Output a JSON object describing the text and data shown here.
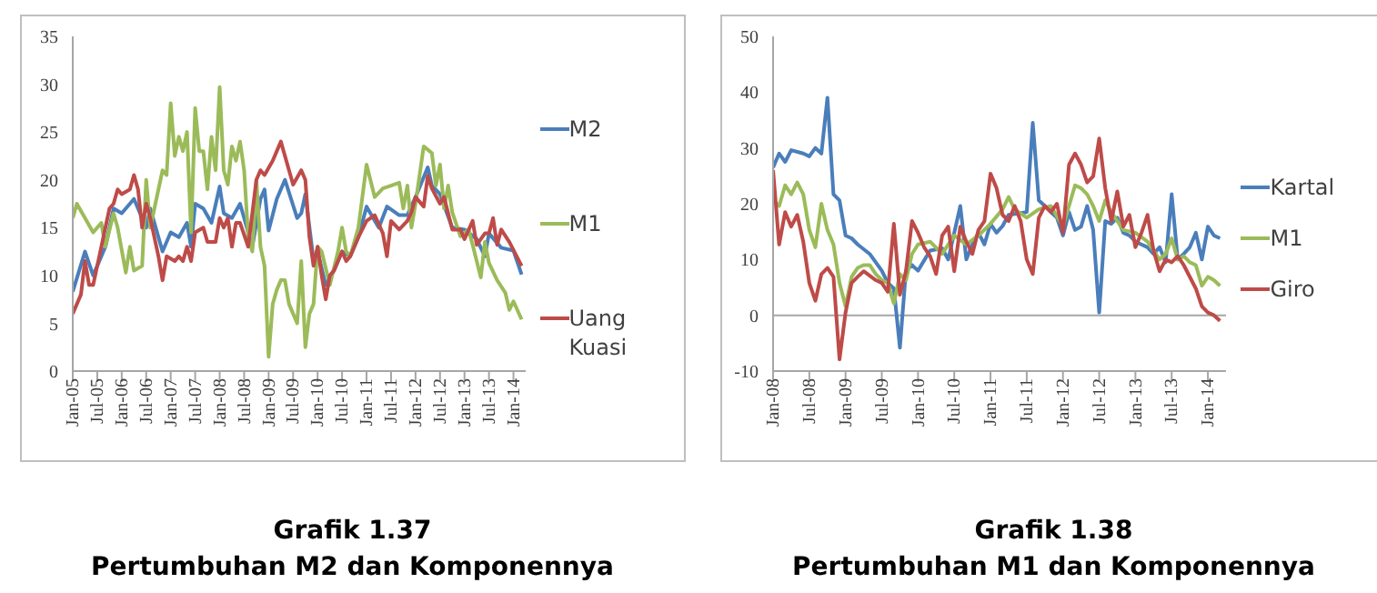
{
  "chart_data": [
    {
      "type": "line",
      "title": "Grafik 1.37",
      "subtitle": "Pertumbuhan M2 dan Komponennya",
      "legend": "right",
      "xlim": [
        "2005-01",
        "2014-04"
      ],
      "ylim": [
        0,
        35
      ],
      "yticks": [
        0,
        5,
        10,
        15,
        20,
        25,
        30,
        35
      ],
      "xticks": [
        {
          "value": "2005-01",
          "label": "Jan-05"
        },
        {
          "value": "2005-07",
          "label": "Jul-05"
        },
        {
          "value": "2006-01",
          "label": "Jan-06"
        },
        {
          "value": "2006-07",
          "label": "Jul-06"
        },
        {
          "value": "2007-01",
          "label": "Jan-07"
        },
        {
          "value": "2007-07",
          "label": "Jul-07"
        },
        {
          "value": "2008-01",
          "label": "Jan-08"
        },
        {
          "value": "2008-07",
          "label": "Jul-08"
        },
        {
          "value": "2009-01",
          "label": "Jan-09"
        },
        {
          "value": "2009-07",
          "label": "Jul-09"
        },
        {
          "value": "2010-01",
          "label": "Jan-10"
        },
        {
          "value": "2010-07",
          "label": "Jul-10"
        },
        {
          "value": "2011-01",
          "label": "Jan-11"
        },
        {
          "value": "2011-07",
          "label": "Jul-11"
        },
        {
          "value": "2012-01",
          "label": "Jan-12"
        },
        {
          "value": "2012-07",
          "label": "Jul-12"
        },
        {
          "value": "2013-01",
          "label": "Jan-13"
        },
        {
          "value": "2013-07",
          "label": "Jul-13"
        },
        {
          "value": "2014-01",
          "label": "Jan-14"
        }
      ],
      "series": [
        {
          "name": "M2",
          "color": "#4a7ebb",
          "x": [
            "2005-01",
            "2005-04",
            "2005-06",
            "2005-09",
            "2005-11",
            "2006-01",
            "2006-04",
            "2006-07",
            "2006-08",
            "2006-11",
            "2007-01",
            "2007-03",
            "2007-05",
            "2007-06",
            "2007-07",
            "2007-09",
            "2007-11",
            "2008-01",
            "2008-02",
            "2008-04",
            "2008-06",
            "2008-09",
            "2008-11",
            "2008-12",
            "2009-01",
            "2009-03",
            "2009-05",
            "2009-08",
            "2009-09",
            "2009-10",
            "2009-12",
            "2010-01",
            "2010-03",
            "2010-05",
            "2010-07",
            "2010-09",
            "2010-11",
            "2011-01",
            "2011-04",
            "2011-06",
            "2011-09",
            "2011-11",
            "2012-01",
            "2012-04",
            "2012-05",
            "2012-07",
            "2012-10",
            "2013-01",
            "2013-04",
            "2013-06",
            "2013-07",
            "2013-10",
            "2014-01",
            "2014-03"
          ],
          "values": [
            8.3,
            12.5,
            10,
            13,
            17,
            16.5,
            18,
            15,
            17,
            12.5,
            14.5,
            14,
            15.5,
            13,
            17.5,
            17,
            15.5,
            19.3,
            16.5,
            16,
            17.5,
            13,
            18,
            19,
            14.7,
            18,
            20,
            16,
            16.5,
            18.5,
            11.6,
            12.5,
            9,
            10.5,
            12.5,
            12,
            14,
            17.2,
            15,
            17.2,
            16.3,
            16.3,
            18.2,
            21.3,
            19.4,
            18.5,
            15,
            14.8,
            13.8,
            12,
            14.4,
            12.9,
            12.6,
            10.1
          ]
        },
        {
          "name": "M1",
          "color": "#9bbb59",
          "x": [
            "2005-01",
            "2005-02",
            "2005-06",
            "2005-08",
            "2005-09",
            "2005-11",
            "2005-12",
            "2006-02",
            "2006-03",
            "2006-04",
            "2006-06",
            "2006-07",
            "2006-08",
            "2006-10",
            "2006-11",
            "2006-12",
            "2007-01",
            "2007-02",
            "2007-03",
            "2007-04",
            "2007-05",
            "2007-06",
            "2007-07",
            "2007-08",
            "2007-09",
            "2007-10",
            "2007-11",
            "2007-12",
            "2008-01",
            "2008-02",
            "2008-03",
            "2008-04",
            "2008-05",
            "2008-06",
            "2008-07",
            "2008-08",
            "2008-09",
            "2008-10",
            "2008-11",
            "2008-12",
            "2009-01",
            "2009-02",
            "2009-03",
            "2009-04",
            "2009-05",
            "2009-06",
            "2009-08",
            "2009-09",
            "2009-10",
            "2009-11",
            "2009-12",
            "2010-01",
            "2010-02",
            "2010-04",
            "2010-06",
            "2010-07",
            "2010-08",
            "2010-09",
            "2010-11",
            "2011-01",
            "2011-03",
            "2011-05",
            "2011-07",
            "2011-09",
            "2011-10",
            "2011-11",
            "2011-12",
            "2012-01",
            "2012-03",
            "2012-05",
            "2012-06",
            "2012-07",
            "2012-08",
            "2012-09",
            "2012-10",
            "2012-12",
            "2013-02",
            "2013-03",
            "2013-05",
            "2013-06",
            "2013-07",
            "2013-09",
            "2013-11",
            "2013-12",
            "2014-01",
            "2014-03"
          ],
          "values": [
            16,
            17.5,
            14.5,
            15.5,
            13,
            16.5,
            15,
            10.3,
            13,
            10.5,
            11,
            20,
            15,
            19,
            21,
            20.5,
            28,
            22.5,
            24.5,
            23,
            25,
            14.5,
            27.5,
            23,
            23,
            19,
            24.5,
            21,
            29.7,
            21,
            19.5,
            23.5,
            22,
            24,
            21,
            14,
            12.5,
            20,
            13,
            11,
            1.5,
            7,
            8.5,
            9.5,
            9.5,
            7,
            5,
            11.5,
            2.5,
            6,
            7,
            13,
            12.5,
            9,
            12.5,
            15,
            12.5,
            12,
            15,
            21.6,
            18.2,
            19.1,
            19.4,
            19.7,
            17,
            19.4,
            15,
            17.5,
            23.5,
            22.8,
            19.4,
            21.6,
            17,
            19.4,
            16.6,
            14.1,
            14.8,
            13.2,
            9.8,
            13.5,
            11.3,
            9.5,
            8.2,
            6.4,
            7.3,
            5.4
          ]
        },
        {
          "name": "Uang Kuasi",
          "color": "#be4b48",
          "x": [
            "2005-01",
            "2005-03",
            "2005-04",
            "2005-05",
            "2005-06",
            "2005-08",
            "2005-10",
            "2005-11",
            "2005-12",
            "2006-01",
            "2006-03",
            "2006-04",
            "2006-05",
            "2006-06",
            "2006-07",
            "2006-08",
            "2006-10",
            "2006-11",
            "2006-12",
            "2007-02",
            "2007-03",
            "2007-04",
            "2007-05",
            "2007-06",
            "2007-07",
            "2007-09",
            "2007-10",
            "2007-12",
            "2008-01",
            "2008-02",
            "2008-03",
            "2008-04",
            "2008-05",
            "2008-06",
            "2008-08",
            "2008-10",
            "2008-11",
            "2008-12",
            "2009-02",
            "2009-04",
            "2009-06",
            "2009-07",
            "2009-09",
            "2009-10",
            "2009-11",
            "2009-12",
            "2010-01",
            "2010-02",
            "2010-03",
            "2010-04",
            "2010-05",
            "2010-07",
            "2010-08",
            "2010-09",
            "2010-11",
            "2011-01",
            "2011-03",
            "2011-05",
            "2011-06",
            "2011-07",
            "2011-09",
            "2011-11",
            "2011-12",
            "2012-01",
            "2012-03",
            "2012-04",
            "2012-05",
            "2012-07",
            "2012-08",
            "2012-10",
            "2012-12",
            "2013-01",
            "2013-03",
            "2013-04",
            "2013-06",
            "2013-07",
            "2013-08",
            "2013-09",
            "2013-10",
            "2013-12",
            "2014-03"
          ],
          "values": [
            6,
            8,
            11.5,
            9,
            9,
            13,
            17,
            17.5,
            19,
            18.5,
            19,
            20.5,
            19,
            15,
            17.5,
            16,
            12,
            9.5,
            12,
            11.5,
            12,
            11.5,
            13,
            11.5,
            14.5,
            15,
            13.5,
            13.5,
            16,
            15,
            16,
            13,
            15.5,
            15.5,
            13,
            20,
            21,
            20.5,
            22,
            24,
            21,
            19.5,
            21,
            20,
            14,
            11,
            13,
            10,
            7.5,
            10,
            10.5,
            12.5,
            11.5,
            12,
            14,
            15.7,
            16.3,
            14.4,
            12,
            15.7,
            14.8,
            15.7,
            16.6,
            18.2,
            17.2,
            20.4,
            19.1,
            17.5,
            18.2,
            14.8,
            14.8,
            13.8,
            15.7,
            13.2,
            14.4,
            14.4,
            16,
            13.2,
            14.8,
            13.5,
            11
          ]
        }
      ]
    },
    {
      "type": "line",
      "title": "Grafik 1.38",
      "subtitle": "Pertumbuhan M1 dan Komponennya",
      "legend": "right",
      "xlim": [
        "2008-01",
        "2014-04"
      ],
      "ylim": [
        -10,
        50
      ],
      "yticks": [
        -10,
        0,
        10,
        20,
        30,
        40,
        50
      ],
      "ref_lines": [
        {
          "axis": "y",
          "value": 0,
          "color": "#a6a6a6"
        }
      ],
      "xticks": [
        {
          "value": "2008-01",
          "label": "Jan-08"
        },
        {
          "value": "2008-07",
          "label": "Jul-08"
        },
        {
          "value": "2009-01",
          "label": "Jan-09"
        },
        {
          "value": "2009-07",
          "label": "Jul-09"
        },
        {
          "value": "2010-01",
          "label": "Jan-10"
        },
        {
          "value": "2010-07",
          "label": "Jul-10"
        },
        {
          "value": "2011-01",
          "label": "Jan-11"
        },
        {
          "value": "2011-07",
          "label": "Jul-11"
        },
        {
          "value": "2012-01",
          "label": "Jan-12"
        },
        {
          "value": "2012-07",
          "label": "Jul-12"
        },
        {
          "value": "2013-01",
          "label": "Jan-13"
        },
        {
          "value": "2013-07",
          "label": "Jul-13"
        },
        {
          "value": "2014-01",
          "label": "Jan-14"
        }
      ],
      "series": [
        {
          "name": "Kartal",
          "color": "#4a7ebb",
          "x": [
            "2008-01",
            "2008-02",
            "2008-03",
            "2008-04",
            "2008-06",
            "2008-07",
            "2008-08",
            "2008-09",
            "2008-10",
            "2008-11",
            "2008-12",
            "2009-01",
            "2009-02",
            "2009-03",
            "2009-05",
            "2009-07",
            "2009-08",
            "2009-09",
            "2009-10",
            "2009-11",
            "2009-12",
            "2010-01",
            "2010-03",
            "2010-05",
            "2010-06",
            "2010-08",
            "2010-09",
            "2010-10",
            "2010-11",
            "2010-12",
            "2011-01",
            "2011-02",
            "2011-03",
            "2011-04",
            "2011-07",
            "2011-08",
            "2011-09",
            "2011-10",
            "2011-11",
            "2011-12",
            "2012-01",
            "2012-02",
            "2012-03",
            "2012-04",
            "2012-05",
            "2012-06",
            "2012-07",
            "2012-08",
            "2012-09",
            "2012-10",
            "2012-11",
            "2012-12",
            "2013-01",
            "2013-03",
            "2013-04",
            "2013-05",
            "2013-06",
            "2013-07",
            "2013-08",
            "2013-09",
            "2013-10",
            "2013-11",
            "2013-12",
            "2014-01",
            "2014-02",
            "2014-03"
          ],
          "values": [
            26.5,
            29,
            27.5,
            29.6,
            29,
            28.5,
            30,
            29,
            39,
            21.7,
            20.6,
            14.3,
            13.8,
            12.7,
            11,
            8,
            5.8,
            4.8,
            -5.8,
            8,
            9,
            8,
            11.6,
            12,
            10,
            19.6,
            10,
            12.7,
            14.8,
            12.7,
            16.4,
            14.8,
            16,
            18,
            18.5,
            34.5,
            20.6,
            19.6,
            18.5,
            17.5,
            14.3,
            18.5,
            15.3,
            15.9,
            19.6,
            15.3,
            0.5,
            16.9,
            16.4,
            17.5,
            14.8,
            14.3,
            13.2,
            12.2,
            11,
            12.2,
            9.5,
            21.7,
            10,
            11,
            12.2,
            14.8,
            10,
            15.9,
            14.3,
            13.8
          ]
        },
        {
          "name": "M1",
          "color": "#9bbb59",
          "x": [
            "2008-01",
            "2008-02",
            "2008-03",
            "2008-04",
            "2008-05",
            "2008-06",
            "2008-07",
            "2008-08",
            "2008-09",
            "2008-10",
            "2008-11",
            "2008-12",
            "2009-01",
            "2009-02",
            "2009-03",
            "2009-04",
            "2009-05",
            "2009-06",
            "2009-07",
            "2009-08",
            "2009-09",
            "2009-10",
            "2009-11",
            "2009-12",
            "2010-01",
            "2010-03",
            "2010-05",
            "2010-07",
            "2010-09",
            "2010-11",
            "2011-01",
            "2011-03",
            "2011-04",
            "2011-05",
            "2011-07",
            "2011-09",
            "2011-11",
            "2012-01",
            "2012-03",
            "2012-04",
            "2012-05",
            "2012-06",
            "2012-07",
            "2012-08",
            "2012-09",
            "2012-11",
            "2013-01",
            "2013-03",
            "2013-04",
            "2013-05",
            "2013-06",
            "2013-07",
            "2013-08",
            "2013-09",
            "2013-10",
            "2013-11",
            "2013-12",
            "2014-01",
            "2014-02",
            "2014-03"
          ],
          "values": [
            20.6,
            19.6,
            23.3,
            21.7,
            23.8,
            21.7,
            15.3,
            12.2,
            20,
            15.3,
            12.7,
            5.8,
            1.6,
            6.9,
            8.5,
            9,
            9,
            7.4,
            6.3,
            5.8,
            2.1,
            7.4,
            6.3,
            11,
            12.7,
            13.2,
            11,
            14.3,
            12.7,
            14.3,
            16.4,
            19,
            21.2,
            19,
            17.5,
            19,
            19.6,
            15.9,
            23.3,
            22.8,
            21.7,
            19.6,
            16.9,
            20.6,
            18.5,
            15.3,
            14.8,
            13.2,
            11.6,
            10,
            11,
            13.8,
            10,
            10.6,
            9.5,
            9,
            5.3,
            6.9,
            6.3,
            5.3
          ]
        },
        {
          "name": "Giro",
          "color": "#be4b48",
          "x": [
            "2008-01",
            "2008-02",
            "2008-03",
            "2008-04",
            "2008-05",
            "2008-06",
            "2008-07",
            "2008-08",
            "2008-09",
            "2008-10",
            "2008-11",
            "2008-12",
            "2009-01",
            "2009-02",
            "2009-03",
            "2009-04",
            "2009-06",
            "2009-07",
            "2009-08",
            "2009-09",
            "2009-10",
            "2009-11",
            "2009-12",
            "2010-01",
            "2010-02",
            "2010-03",
            "2010-04",
            "2010-05",
            "2010-06",
            "2010-07",
            "2010-08",
            "2010-09",
            "2010-10",
            "2010-11",
            "2010-12",
            "2011-01",
            "2011-02",
            "2011-03",
            "2011-04",
            "2011-05",
            "2011-06",
            "2011-07",
            "2011-08",
            "2011-09",
            "2011-10",
            "2011-11",
            "2011-12",
            "2012-01",
            "2012-02",
            "2012-03",
            "2012-04",
            "2012-05",
            "2012-06",
            "2012-07",
            "2012-08",
            "2012-09",
            "2012-10",
            "2012-11",
            "2012-12",
            "2013-01",
            "2013-02",
            "2013-03",
            "2013-04",
            "2013-05",
            "2013-06",
            "2013-07",
            "2013-08",
            "2013-09",
            "2013-11",
            "2013-12",
            "2014-01",
            "2014-02",
            "2014-03"
          ],
          "values": [
            26,
            12.7,
            18.5,
            15.9,
            18,
            13.2,
            5.8,
            2.6,
            7.4,
            8.5,
            6.9,
            -7.9,
            0.5,
            5.8,
            6.9,
            7.9,
            6.3,
            5.8,
            4.2,
            16.4,
            3.7,
            7.9,
            16.9,
            14.8,
            12.2,
            10.6,
            7.4,
            14.3,
            15.9,
            7.9,
            15.9,
            13.2,
            11,
            15.3,
            16.9,
            25.4,
            22.8,
            18,
            16.9,
            19.6,
            16.9,
            10,
            7.4,
            17.5,
            19.6,
            18.5,
            20,
            14.8,
            27,
            29,
            27,
            23.8,
            24.9,
            31.7,
            22.8,
            16.9,
            22.2,
            15.9,
            18,
            12.2,
            14.8,
            18,
            11.6,
            7.9,
            10,
            9.5,
            10.6,
            9,
            4.8,
            1.6,
            0.5,
            0,
            -1
          ]
        }
      ]
    }
  ]
}
